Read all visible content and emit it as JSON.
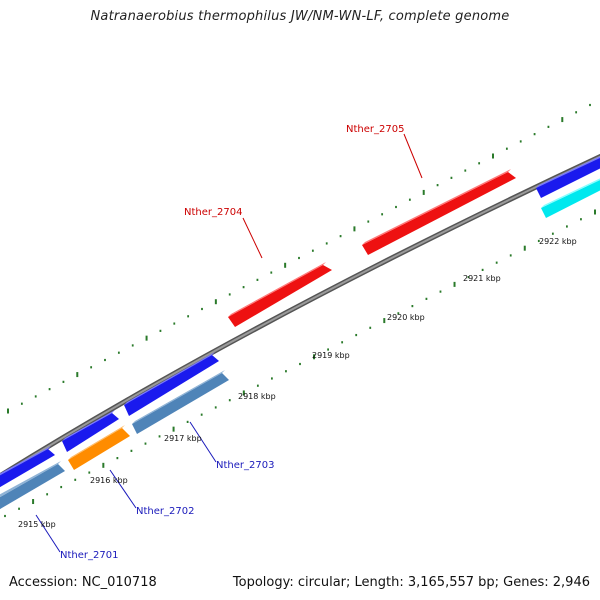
{
  "title": "Natranaerobius thermophilus JW/NM-WN-LF, complete genome",
  "accession": "Accession: NC_010718",
  "summary": "Topology: circular; Length: 3,165,557 bp; Genes: 2,946",
  "colors": {
    "backbone": "#777777",
    "tick": "#2a7a2a",
    "red_gene": "#ee1111",
    "red_label": "#cc0000",
    "blue_gene": "#1a1aee",
    "steel_gene": "#4f84b8",
    "orange_gene": "#ff8c00",
    "cyan_gene": "#00e8ee",
    "blue_label": "#1a1abb"
  },
  "kbp_labels": [
    "2915 kbp",
    "2916 kbp",
    "2917 kbp",
    "2918 kbp",
    "2919 kbp",
    "2920 kbp",
    "2921 kbp",
    "2922 kbp"
  ],
  "genes": [
    {
      "name": "Nther_2701",
      "color": "steel"
    },
    {
      "name": "Nther_2702",
      "color": "orange"
    },
    {
      "name": "Nther_2703",
      "color": "steel"
    },
    {
      "name": "Nther_2704",
      "color": "red"
    },
    {
      "name": "Nther_2705",
      "color": "red"
    }
  ]
}
